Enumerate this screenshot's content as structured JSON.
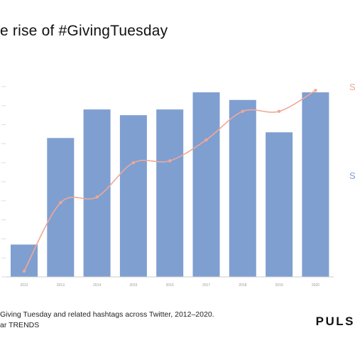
{
  "title": "e rise of #GivingTuesday",
  "footnote_line1": "Giving Tuesday and related hashtags across Twitter, 2012–2020.",
  "footnote_line2": "ar TRENDS",
  "logo_text": "PULS",
  "right_labels": [
    "S",
    "S"
  ],
  "colors": {
    "bar": "#7f9fd1",
    "line": "#f0a896",
    "axis": "#cccccc",
    "tick": "#999999"
  },
  "chart_data": {
    "type": "bar",
    "categories": [
      "2012",
      "2013",
      "2014",
      "2015",
      "2016",
      "2017",
      "2018",
      "2019",
      "2020"
    ],
    "series": [
      {
        "type": "bar",
        "values": [
          17,
          73,
          88,
          85,
          88,
          97,
          93,
          76,
          97
        ]
      },
      {
        "type": "line",
        "values": [
          3,
          39,
          42,
          60,
          61,
          72,
          87,
          87,
          98
        ]
      }
    ],
    "ylim": [
      0,
      100
    ],
    "grid": false
  }
}
